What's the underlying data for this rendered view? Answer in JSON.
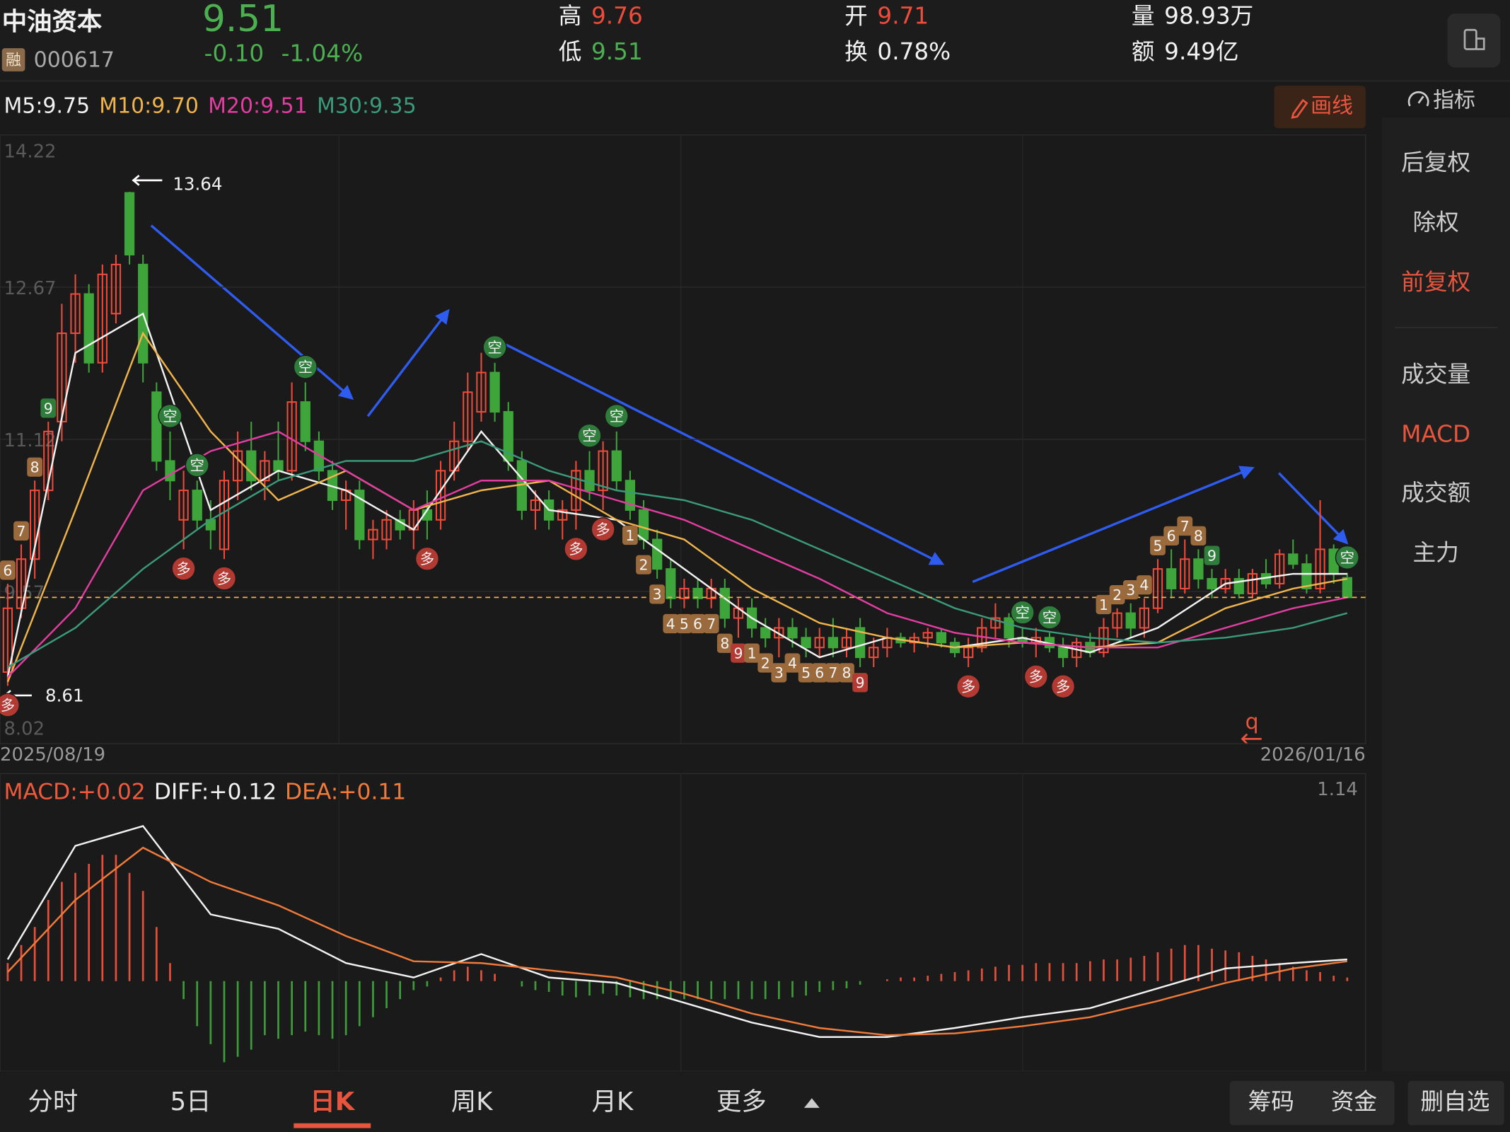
{
  "header": {
    "name": "中油资本",
    "badge": "融",
    "code": "000617",
    "price": "9.51",
    "change": "-0.10",
    "change_pct": "-1.04%",
    "stats": [
      {
        "label": "高",
        "value": "9.76",
        "tone": "up"
      },
      {
        "label": "低",
        "value": "9.51",
        "tone": "down"
      },
      {
        "label": "开",
        "value": "9.71",
        "tone": "up"
      },
      {
        "label": "换",
        "value": "0.78%",
        "tone": "flat"
      },
      {
        "label": "量",
        "value": "98.93万",
        "tone": "flat"
      },
      {
        "label": "额",
        "value": "9.49亿",
        "tone": "flat"
      }
    ]
  },
  "indicators": [
    {
      "text": "M5:9.75",
      "color": "#f2f2f2"
    },
    {
      "text": "M10:9.70",
      "color": "#f0b44c"
    },
    {
      "text": "M20:9.51",
      "color": "#e23da0"
    },
    {
      "text": "M30:9.35",
      "color": "#3a9a7a"
    }
  ],
  "draw_button": "画线",
  "index_button": "指标",
  "side_menu": [
    {
      "text": "后复权",
      "active": false
    },
    {
      "text": "除权",
      "active": false
    },
    {
      "text": "前复权",
      "active": true
    },
    {
      "text": "成交量",
      "active": false
    },
    {
      "text": "MACD",
      "active": true
    },
    {
      "text": "成交额",
      "active": false
    },
    {
      "text": "主力",
      "active": false
    }
  ],
  "tabs": [
    {
      "text": "分时",
      "active": false
    },
    {
      "text": "5日",
      "active": false
    },
    {
      "text": "日K",
      "active": true
    },
    {
      "text": "周K",
      "active": false
    },
    {
      "text": "月K",
      "active": false
    },
    {
      "text": "更多",
      "active": false
    }
  ],
  "right_tabs": [
    "筹码",
    "资金",
    "删自选"
  ],
  "chart_data": [
    {
      "type": "candlestick",
      "ylim": [
        8.02,
        14.22
      ],
      "yticks": [
        14.22,
        12.67,
        11.12,
        9.57,
        8.02
      ],
      "grid": true,
      "up_color": "#ef4b3b",
      "down_color": "#3ea53b",
      "date_labels": [
        "2025/08/19",
        "2026/01/16"
      ],
      "last_price": 9.51,
      "candles": [
        [
          8.75,
          9.65,
          8.61,
          9.4
        ],
        [
          9.4,
          10.05,
          9.3,
          9.9
        ],
        [
          9.9,
          10.7,
          9.7,
          10.6
        ],
        [
          10.6,
          11.3,
          10.5,
          11.2
        ],
        [
          11.3,
          12.5,
          11.1,
          12.2
        ],
        [
          12.2,
          12.8,
          11.9,
          12.6
        ],
        [
          12.6,
          12.7,
          11.8,
          11.9
        ],
        [
          11.9,
          12.9,
          11.8,
          12.8
        ],
        [
          12.4,
          13.0,
          12.3,
          12.9
        ],
        [
          13.63,
          13.64,
          12.9,
          13.0
        ],
        [
          12.9,
          13.0,
          11.7,
          11.9
        ],
        [
          11.6,
          11.7,
          10.8,
          10.9
        ],
        [
          10.9,
          11.2,
          10.5,
          10.7
        ],
        [
          10.3,
          10.8,
          10.0,
          10.6
        ],
        [
          10.6,
          10.7,
          10.2,
          10.3
        ],
        [
          10.3,
          10.5,
          10.0,
          10.2
        ],
        [
          10.0,
          10.8,
          9.9,
          10.7
        ],
        [
          10.7,
          11.2,
          10.5,
          11.0
        ],
        [
          11.0,
          11.3,
          10.6,
          10.7
        ],
        [
          10.7,
          11.0,
          10.5,
          10.9
        ],
        [
          10.9,
          11.3,
          10.7,
          10.8
        ],
        [
          10.8,
          11.7,
          10.7,
          11.5
        ],
        [
          11.5,
          11.7,
          11.0,
          11.1
        ],
        [
          11.1,
          11.2,
          10.7,
          10.8
        ],
        [
          10.8,
          10.9,
          10.4,
          10.5
        ],
        [
          10.5,
          10.7,
          10.2,
          10.6
        ],
        [
          10.6,
          10.7,
          10.0,
          10.1
        ],
        [
          10.1,
          10.3,
          9.9,
          10.2
        ],
        [
          10.1,
          10.4,
          10.0,
          10.3
        ],
        [
          10.3,
          10.4,
          10.1,
          10.2
        ],
        [
          10.2,
          10.5,
          10.0,
          10.4
        ],
        [
          10.4,
          10.6,
          10.1,
          10.3
        ],
        [
          10.3,
          10.9,
          10.2,
          10.8
        ],
        [
          10.8,
          11.3,
          10.7,
          11.1
        ],
        [
          11.1,
          11.8,
          11.0,
          11.6
        ],
        [
          11.4,
          12.0,
          11.3,
          11.8
        ],
        [
          11.8,
          11.9,
          11.3,
          11.4
        ],
        [
          11.4,
          11.5,
          10.8,
          10.9
        ],
        [
          10.9,
          11.0,
          10.3,
          10.4
        ],
        [
          10.4,
          10.6,
          10.2,
          10.5
        ],
        [
          10.5,
          10.6,
          10.2,
          10.3
        ],
        [
          10.3,
          10.5,
          10.1,
          10.4
        ],
        [
          10.4,
          10.9,
          10.2,
          10.8
        ],
        [
          10.8,
          11.0,
          10.5,
          10.6
        ],
        [
          10.6,
          11.1,
          10.4,
          11.0
        ],
        [
          11.0,
          11.2,
          10.6,
          10.7
        ],
        [
          10.7,
          10.8,
          10.3,
          10.4
        ],
        [
          10.4,
          10.5,
          10.0,
          10.1
        ],
        [
          10.1,
          10.2,
          9.7,
          9.8
        ],
        [
          9.8,
          9.9,
          9.4,
          9.5
        ],
        [
          9.5,
          9.7,
          9.4,
          9.6
        ],
        [
          9.6,
          9.7,
          9.4,
          9.5
        ],
        [
          9.5,
          9.7,
          9.4,
          9.6
        ],
        [
          9.6,
          9.7,
          9.2,
          9.3
        ],
        [
          9.3,
          9.5,
          9.1,
          9.4
        ],
        [
          9.4,
          9.5,
          9.1,
          9.2
        ],
        [
          9.2,
          9.3,
          9.0,
          9.1
        ],
        [
          9.1,
          9.3,
          8.9,
          9.2
        ],
        [
          9.2,
          9.3,
          9.0,
          9.1
        ],
        [
          9.1,
          9.2,
          8.9,
          9.0
        ],
        [
          9.0,
          9.2,
          8.9,
          9.1
        ],
        [
          9.1,
          9.3,
          8.9,
          9.0
        ],
        [
          9.0,
          9.2,
          8.9,
          9.1
        ],
        [
          9.2,
          9.3,
          8.8,
          8.9
        ],
        [
          8.9,
          9.1,
          8.8,
          9.0
        ],
        [
          9.0,
          9.2,
          8.9,
          9.1
        ],
        [
          9.1,
          9.15,
          9.0,
          9.05
        ],
        [
          9.05,
          9.15,
          8.95,
          9.1
        ],
        [
          9.1,
          9.2,
          9.0,
          9.15
        ],
        [
          9.15,
          9.2,
          9.0,
          9.05
        ],
        [
          9.05,
          9.1,
          8.9,
          8.95
        ],
        [
          8.9,
          9.1,
          8.8,
          9.0
        ],
        [
          9.0,
          9.3,
          8.95,
          9.2
        ],
        [
          9.2,
          9.45,
          9.1,
          9.3
        ],
        [
          9.3,
          9.35,
          9.0,
          9.1
        ],
        [
          9.1,
          9.2,
          9.0,
          9.05
        ],
        [
          9.05,
          9.2,
          8.9,
          9.1
        ],
        [
          9.1,
          9.15,
          8.95,
          9.0
        ],
        [
          9.0,
          9.1,
          8.8,
          8.9
        ],
        [
          8.9,
          9.1,
          8.8,
          9.05
        ],
        [
          9.05,
          9.15,
          8.9,
          8.95
        ],
        [
          8.95,
          9.3,
          8.9,
          9.2
        ],
        [
          9.2,
          9.4,
          9.1,
          9.35
        ],
        [
          9.35,
          9.45,
          9.1,
          9.2
        ],
        [
          9.2,
          9.5,
          9.1,
          9.4
        ],
        [
          9.4,
          9.9,
          9.35,
          9.8
        ],
        [
          9.8,
          10.0,
          9.5,
          9.6
        ],
        [
          9.6,
          10.1,
          9.55,
          9.9
        ],
        [
          9.9,
          10.0,
          9.6,
          9.7
        ],
        [
          9.7,
          9.8,
          9.5,
          9.6
        ],
        [
          9.6,
          9.8,
          9.55,
          9.7
        ],
        [
          9.7,
          9.8,
          9.5,
          9.55
        ],
        [
          9.55,
          9.8,
          9.5,
          9.75
        ],
        [
          9.75,
          9.9,
          9.6,
          9.65
        ],
        [
          9.65,
          10.0,
          9.6,
          9.95
        ],
        [
          9.95,
          10.1,
          9.8,
          9.85
        ],
        [
          9.85,
          9.95,
          9.55,
          9.6
        ],
        [
          9.6,
          10.5,
          9.55,
          10.0
        ],
        [
          10.0,
          10.05,
          9.65,
          9.75
        ],
        [
          9.71,
          9.76,
          9.51,
          9.51
        ]
      ],
      "ma": {
        "x": [
          0,
          5,
          10,
          15,
          20,
          25,
          30,
          35,
          40,
          45,
          50,
          55,
          60,
          65,
          70,
          75,
          80,
          85,
          90,
          95,
          99
        ],
        "series": [
          {
            "name": "M5",
            "color": "#f2f2f2",
            "values": [
              8.7,
              12.0,
              12.4,
              10.4,
              10.8,
              10.6,
              10.2,
              11.2,
              10.4,
              10.3,
              9.8,
              9.3,
              8.9,
              9.1,
              9.0,
              9.1,
              8.95,
              9.2,
              9.65,
              9.75,
              9.75
            ]
          },
          {
            "name": "M10",
            "color": "#f0b44c",
            "values": [
              8.65,
              10.4,
              12.2,
              11.2,
              10.5,
              10.8,
              10.4,
              10.6,
              10.7,
              10.3,
              10.1,
              9.6,
              9.25,
              9.1,
              9.0,
              9.05,
              9.0,
              9.05,
              9.4,
              9.6,
              9.7
            ]
          },
          {
            "name": "M20",
            "color": "#e23da0",
            "values": [
              8.7,
              9.4,
              10.6,
              11.0,
              11.2,
              10.8,
              10.4,
              10.7,
              10.7,
              10.5,
              10.3,
              10.0,
              9.7,
              9.35,
              9.15,
              9.05,
              9.0,
              9.0,
              9.2,
              9.4,
              9.51
            ]
          },
          {
            "name": "M30",
            "color": "#3a9a7a",
            "values": [
              8.8,
              9.2,
              9.8,
              10.3,
              10.7,
              10.9,
              10.9,
              11.1,
              10.8,
              10.6,
              10.5,
              10.3,
              10.0,
              9.7,
              9.4,
              9.2,
              9.1,
              9.05,
              9.1,
              9.2,
              9.35
            ]
          }
        ]
      },
      "high_mark": {
        "at": 9,
        "value": 13.64
      },
      "low_mark": {
        "at": 0,
        "value": 8.61
      },
      "buy_signals": {
        "label": "多",
        "at": [
          0,
          13,
          16,
          31,
          42,
          44,
          71,
          76,
          78
        ]
      },
      "sell_signals": {
        "label": "空",
        "at": [
          12,
          14,
          22,
          36,
          43,
          45,
          75,
          77,
          99
        ]
      },
      "td_above": [
        {
          "at": 0,
          "label": "6",
          "color": "#9a6a3c"
        },
        {
          "at": 1,
          "label": "7",
          "color": "#9a6a3c"
        },
        {
          "at": 2,
          "label": "8",
          "color": "#9a6a3c"
        },
        {
          "at": 3,
          "label": "9",
          "color": "#2f7d3a"
        },
        {
          "at": 81,
          "label": "1",
          "color": "#9a6a3c"
        },
        {
          "at": 82,
          "label": "2",
          "color": "#9a6a3c"
        },
        {
          "at": 83,
          "label": "3",
          "color": "#9a6a3c"
        },
        {
          "at": 84,
          "label": "4",
          "color": "#9a6a3c"
        },
        {
          "at": 85,
          "label": "5",
          "color": "#9a6a3c"
        },
        {
          "at": 86,
          "label": "6",
          "color": "#9a6a3c"
        },
        {
          "at": 87,
          "label": "7",
          "color": "#9a6a3c"
        },
        {
          "at": 88,
          "label": "8",
          "color": "#9a6a3c"
        },
        {
          "at": 89,
          "label": "9",
          "color": "#2f7d3a"
        }
      ],
      "td_below": [
        {
          "at": 46,
          "label": "1",
          "color": "#9a6a3c"
        },
        {
          "at": 47,
          "label": "2",
          "color": "#9a6a3c"
        },
        {
          "at": 48,
          "label": "3",
          "color": "#9a6a3c"
        },
        {
          "at": 49,
          "label": "4",
          "color": "#9a6a3c"
        },
        {
          "at": 50,
          "label": "5",
          "color": "#9a6a3c"
        },
        {
          "at": 51,
          "label": "6",
          "color": "#9a6a3c"
        },
        {
          "at": 52,
          "label": "7",
          "color": "#9a6a3c"
        },
        {
          "at": 53,
          "label": "8",
          "color": "#9a6a3c"
        },
        {
          "at": 54,
          "label": "9",
          "color": "#b23a32"
        },
        {
          "at": 55,
          "label": "1",
          "color": "#9a6a3c"
        },
        {
          "at": 56,
          "label": "2",
          "color": "#9a6a3c"
        },
        {
          "at": 57,
          "label": "3",
          "color": "#9a6a3c"
        },
        {
          "at": 58,
          "label": "4",
          "color": "#9a6a3c"
        },
        {
          "at": 59,
          "label": "5",
          "color": "#9a6a3c"
        },
        {
          "at": 60,
          "label": "6",
          "color": "#9a6a3c"
        },
        {
          "at": 61,
          "label": "7",
          "color": "#9a6a3c"
        },
        {
          "at": 62,
          "label": "8",
          "color": "#9a6a3c"
        },
        {
          "at": 63,
          "label": "9",
          "color": "#b23a32"
        }
      ],
      "cursor_label": "q"
    },
    {
      "type": "macd",
      "ylim": [
        -0.5,
        1.14
      ],
      "yticks": [
        1.14
      ],
      "labels": [
        {
          "text": "MACD:+0.02",
          "color": "#ef5a3c"
        },
        {
          "text": "DIFF:+0.12",
          "color": "#f2f2f2"
        },
        {
          "text": "DEA:+0.11",
          "color": "#f07a3a"
        }
      ],
      "x": [
        0,
        5,
        10,
        15,
        20,
        25,
        30,
        35,
        40,
        45,
        50,
        55,
        60,
        65,
        70,
        75,
        80,
        85,
        90,
        95,
        99
      ],
      "series": [
        {
          "name": "DIFF",
          "color": "#f2f2f2",
          "values": [
            0.12,
            0.75,
            0.86,
            0.37,
            0.29,
            0.1,
            0.02,
            0.15,
            0.02,
            -0.01,
            -0.12,
            -0.23,
            -0.31,
            -0.31,
            -0.26,
            -0.2,
            -0.15,
            -0.04,
            0.07,
            0.1,
            0.12
          ]
        },
        {
          "name": "DEA",
          "color": "#f07a3a",
          "values": [
            0.05,
            0.45,
            0.74,
            0.55,
            0.42,
            0.25,
            0.11,
            0.1,
            0.06,
            0.02,
            -0.07,
            -0.18,
            -0.26,
            -0.3,
            -0.29,
            -0.25,
            -0.2,
            -0.11,
            -0.01,
            0.07,
            0.11
          ]
        }
      ],
      "up_color": "#e0503a",
      "down_color": "#3e9a3a",
      "hist": [
        0.1,
        0.2,
        0.3,
        0.45,
        0.55,
        0.6,
        0.65,
        0.7,
        0.7,
        0.6,
        0.5,
        0.3,
        0.1,
        -0.1,
        -0.25,
        -0.35,
        -0.45,
        -0.42,
        -0.38,
        -0.3,
        -0.32,
        -0.3,
        -0.28,
        -0.3,
        -0.32,
        -0.3,
        -0.25,
        -0.2,
        -0.15,
        -0.1,
        -0.05,
        -0.03,
        0.02,
        0.06,
        0.08,
        0.06,
        0.04,
        0.0,
        -0.03,
        -0.05,
        -0.06,
        -0.08,
        -0.09,
        -0.08,
        -0.07,
        -0.08,
        -0.09,
        -0.1,
        -0.1,
        -0.1,
        -0.1,
        -0.1,
        -0.1,
        -0.1,
        -0.1,
        -0.1,
        -0.1,
        -0.1,
        -0.09,
        -0.08,
        -0.06,
        -0.05,
        -0.04,
        -0.02,
        0.0,
        0.01,
        0.02,
        0.02,
        0.03,
        0.04,
        0.05,
        0.06,
        0.07,
        0.08,
        0.09,
        0.09,
        0.1,
        0.1,
        0.1,
        0.1,
        0.11,
        0.12,
        0.12,
        0.13,
        0.14,
        0.16,
        0.18,
        0.2,
        0.2,
        0.18,
        0.17,
        0.16,
        0.14,
        0.12,
        0.1,
        0.08,
        0.06,
        0.05,
        0.03,
        0.02
      ]
    }
  ]
}
